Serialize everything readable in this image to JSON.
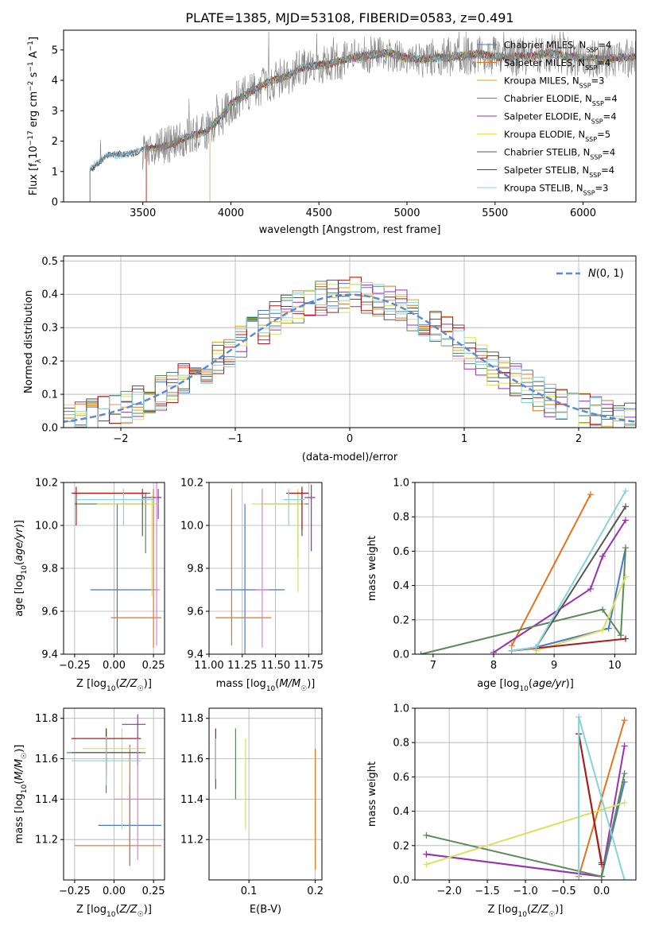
{
  "figure": {
    "title": "PLATE=1385, MJD=53108, FIBERID=0583, z=0.491"
  },
  "colors": {
    "series": [
      "#4a78c8",
      "#e5731c",
      "#d7a71e",
      "#5a8a5a",
      "#9a2fb0",
      "#d6e35a",
      "#555555",
      "#b01818",
      "#86d3dc"
    ],
    "pink": "#e87ad2",
    "gauss": "#5b8ad6"
  },
  "chart_data": [
    {
      "id": "spectrum",
      "type": "line",
      "xlabel": "wavelength [Angstrom, rest frame]",
      "ylabel": "Flux [f_λ 10^-17 erg cm^-2 s^-1 A^-1]",
      "xlim": [
        3050,
        6300
      ],
      "ylim": [
        0,
        5.65
      ],
      "xticks": [
        3500,
        4000,
        4500,
        5000,
        5500,
        6000
      ],
      "yticks": [
        0,
        1,
        2,
        3,
        4,
        5
      ],
      "legend_position": "upper right",
      "series": [
        {
          "name": "Chabrier MILES, N_SSP=4"
        },
        {
          "name": "Salpeter MILES, N_SSP=4"
        },
        {
          "name": "Kroupa MILES, N_SSP=3"
        },
        {
          "name": "Chabrier ELODIE, N_SSP=4"
        },
        {
          "name": "Salpeter ELODIE, N_SSP=4"
        },
        {
          "name": "Kroupa ELODIE, N_SSP=5"
        },
        {
          "name": "Chabrier STELIB, N_SSP=4"
        },
        {
          "name": "Salpeter STELIB, N_SSP=4"
        },
        {
          "name": "Kroupa STELIB, N_SSP=3"
        }
      ],
      "model_start": [
        3200,
        3520,
        3520,
        3880,
        3880,
        3880,
        3200,
        3520,
        3200
      ],
      "continuum": {
        "x": [
          3200,
          3250,
          3300,
          3400,
          3500,
          3550,
          3650,
          3700,
          3750,
          3800,
          3850,
          3950,
          4000,
          4100,
          4200,
          4300,
          4400,
          4500,
          4600,
          4700,
          4800,
          4900,
          5000,
          5100,
          5200,
          5300,
          5400,
          5500,
          5600,
          5700,
          5800,
          5900,
          6000,
          6100,
          6200
        ],
        "y": [
          1.1,
          1.3,
          1.5,
          1.6,
          1.7,
          1.75,
          1.9,
          2.0,
          2.1,
          2.2,
          2.3,
          2.8,
          3.2,
          3.6,
          3.9,
          4.1,
          4.4,
          4.5,
          4.6,
          4.75,
          4.85,
          4.9,
          4.75,
          4.7,
          4.75,
          4.8,
          4.85,
          4.8,
          4.75,
          4.8,
          4.9,
          4.8,
          4.75,
          4.7,
          4.75
        ]
      },
      "observed_start": 3200
    },
    {
      "id": "residuals",
      "type": "histogram",
      "xlabel": "(data-model)/error",
      "ylabel": "Normed distribution",
      "xlim": [
        -2.5,
        2.5
      ],
      "ylim": [
        0,
        0.515
      ],
      "xticks": [
        -2,
        -1,
        0,
        1,
        2
      ],
      "yticks": [
        0.0,
        0.1,
        0.2,
        0.3,
        0.4,
        0.5
      ],
      "bin_width": 0.1,
      "legend_position": "upper right",
      "reference": {
        "name": "N(0,1)",
        "mean": 0,
        "sigma": 1
      }
    },
    {
      "id": "age-vs-Z",
      "type": "scatter",
      "xlabel": "Z [log10(Z/Z☉)]",
      "ylabel": "age [log10(age/yr)]",
      "xlim": [
        -0.32,
        0.32
      ],
      "ylim": [
        9.4,
        10.2
      ],
      "xticks": [
        -0.25,
        0.0,
        0.25
      ],
      "yticks": [
        9.4,
        9.6,
        9.8,
        10.0,
        10.2
      ],
      "points": [
        {
          "s": 0,
          "x": 0.02,
          "y": 9.7,
          "xerr": [
            0.17,
            0.25
          ],
          "yerr": [
            0.3,
            0.4
          ]
        },
        {
          "s": 1,
          "x": 0.25,
          "y": 9.57,
          "xerr": [
            0.27,
            0.05
          ],
          "yerr": [
            0.14,
            0.6
          ]
        },
        {
          "s": 4,
          "x": 0.28,
          "y": 10.13,
          "xerr": [
            0.1,
            0.02
          ],
          "yerr": [
            0.1,
            0.04
          ]
        },
        {
          "s": 3,
          "x": 0.2,
          "y": 10.1,
          "xerr": [
            0.45,
            0.02
          ],
          "yerr": [
            0.23,
            0.05
          ]
        },
        {
          "s": 5,
          "x": 0.24,
          "y": 10.1,
          "xerr": [
            0.35,
            0.04
          ],
          "yerr": [
            0.43,
            0.04
          ]
        },
        {
          "s": 6,
          "x": 0.18,
          "y": 10.15,
          "xerr": [
            0.45,
            0.05
          ],
          "yerr": [
            0.2,
            0.02
          ]
        },
        {
          "s": 7,
          "x": -0.24,
          "y": 10.15,
          "xerr": [
            0.02,
            0.45
          ],
          "yerr": [
            0.15,
            0.03
          ]
        },
        {
          "s": 8,
          "x": 0.06,
          "y": 10.12,
          "xerr": [
            0.3,
            0.2
          ],
          "yerr": [
            0.12,
            0.05
          ]
        }
      ],
      "pink_point": {
        "x": 0.27,
        "y": 9.7,
        "xerr": [
          0.02,
          0.02
        ],
        "yerr": [
          0.26,
          0.5
        ]
      }
    },
    {
      "id": "age-vs-mass",
      "type": "scatter",
      "xlabel": "mass [log10(M/M☉)]",
      "ylabel": "",
      "xlim": [
        11.0,
        11.85
      ],
      "ylim": [
        9.4,
        10.2
      ],
      "xticks": [
        11.0,
        11.25,
        11.5,
        11.75
      ],
      "xtick_labels": [
        "11.00",
        "11.25",
        "11.50",
        "11.75"
      ],
      "yticks": [
        9.4,
        9.6,
        9.8,
        10.0,
        10.2
      ],
      "points": [
        {
          "s": 0,
          "x": 11.27,
          "y": 9.7,
          "xerr": [
            0.22,
            0.3
          ],
          "yerr": [
            0.3,
            0.4
          ]
        },
        {
          "s": 1,
          "x": 11.17,
          "y": 9.57,
          "xerr": [
            0.12,
            0.3
          ],
          "yerr": [
            0.13,
            0.6
          ]
        },
        {
          "s": 4,
          "x": 11.77,
          "y": 10.13,
          "xerr": [
            0.05,
            0.03
          ],
          "yerr": [
            0.25,
            0.06
          ]
        },
        {
          "s": 3,
          "x": 11.67,
          "y": 10.1,
          "xerr": [
            0.26,
            0.08
          ],
          "yerr": [
            0.25,
            0.06
          ]
        },
        {
          "s": 5,
          "x": 11.67,
          "y": 10.1,
          "xerr": [
            0.35,
            0.05
          ],
          "yerr": [
            0.41,
            0.07
          ]
        },
        {
          "s": 6,
          "x": 11.7,
          "y": 10.15,
          "xerr": [
            0.12,
            0.05
          ],
          "yerr": [
            0.2,
            0.02
          ]
        },
        {
          "s": 7,
          "x": 11.7,
          "y": 10.15,
          "xerr": [
            0.1,
            0.05
          ],
          "yerr": [
            0.17,
            0.03
          ]
        },
        {
          "s": 8,
          "x": 11.6,
          "y": 10.12,
          "xerr": [
            0.04,
            0.12
          ],
          "yerr": [
            0.12,
            0.05
          ]
        }
      ],
      "pink_point": {
        "x": 11.4,
        "y": 9.7,
        "xerr": [
          0.05,
          0.05
        ],
        "yerr": [
          0.27,
          0.47
        ]
      }
    },
    {
      "id": "weight-vs-age",
      "type": "line",
      "xlabel": "age [log10(age/yr)]",
      "ylabel": "mass weight",
      "xlim": [
        6.7,
        10.35
      ],
      "ylim": [
        0,
        1
      ],
      "xticks": [
        7,
        8,
        9,
        10
      ],
      "yticks": [
        0.0,
        0.2,
        0.4,
        0.6,
        0.8,
        1.0
      ],
      "series": [
        {
          "s": 0,
          "x": [
            8.3,
            8.7,
            9.9,
            10.18
          ],
          "y": [
            0.02,
            0.04,
            0.15,
            0.62
          ]
        },
        {
          "s": 1,
          "x": [
            8.3,
            9.6
          ],
          "y": [
            0.05,
            0.93
          ]
        },
        {
          "s": 4,
          "x": [
            8.0,
            9.6,
            9.8,
            10.18
          ],
          "y": [
            0.01,
            0.38,
            0.57,
            0.78
          ]
        },
        {
          "s": 3,
          "x": [
            6.8,
            9.8,
            10.1,
            10.18
          ],
          "y": [
            0.0,
            0.26,
            0.11,
            0.62
          ]
        },
        {
          "s": 5,
          "x": [
            8.7,
            9.8,
            10.18
          ],
          "y": [
            0.02,
            0.14,
            0.45
          ]
        },
        {
          "s": 6,
          "x": [
            8.3,
            8.7,
            10.18
          ],
          "y": [
            0.02,
            0.04,
            0.86
          ]
        },
        {
          "s": 7,
          "x": [
            8.3,
            10.18
          ],
          "y": [
            0.02,
            0.09
          ]
        },
        {
          "s": 8,
          "x": [
            8.3,
            8.7,
            10.18
          ],
          "y": [
            0.02,
            0.04,
            0.95
          ]
        }
      ]
    },
    {
      "id": "mass-vs-Z",
      "type": "scatter",
      "xlabel": "Z [log10(Z/Z☉)]",
      "ylabel": "mass [log10(M/M☉)]",
      "xlim": [
        -0.32,
        0.32
      ],
      "ylim": [
        11.0,
        11.85
      ],
      "xticks": [
        -0.25,
        0.0,
        0.25
      ],
      "yticks": [
        11.2,
        11.4,
        11.6,
        11.8
      ],
      "points": [
        {
          "s": 0,
          "x": 0.1,
          "y": 11.27,
          "xerr": [
            0.2,
            0.2
          ],
          "yerr": [
            0.2,
            0.2
          ]
        },
        {
          "s": 1,
          "x": 0.1,
          "y": 11.17,
          "xerr": [
            0.35,
            0.2
          ],
          "yerr": [
            0.1,
            0.5
          ]
        },
        {
          "s": 4,
          "x": 0.15,
          "y": 11.77,
          "xerr": [
            0.1,
            0.05
          ],
          "yerr": [
            0.2,
            0.05
          ]
        },
        {
          "s": 3,
          "x": -0.05,
          "y": 11.63,
          "xerr": [
            0.25,
            0.25
          ],
          "yerr": [
            0.2,
            0.1
          ]
        },
        {
          "s": 5,
          "x": 0.05,
          "y": 11.65,
          "xerr": [
            0.25,
            0.15
          ],
          "yerr": [
            0.4,
            0.1
          ]
        },
        {
          "s": 6,
          "x": -0.05,
          "y": 11.63,
          "xerr": [
            0.22,
            0.22
          ],
          "yerr": [
            0.12,
            0.12
          ]
        },
        {
          "s": 7,
          "x": -0.05,
          "y": 11.7,
          "xerr": [
            0.22,
            0.22
          ],
          "yerr": [
            0.15,
            0.05
          ]
        },
        {
          "s": 8,
          "x": -0.05,
          "y": 11.59,
          "xerr": [
            0.22,
            0.22
          ],
          "yerr": [
            0.12,
            0.12
          ]
        }
      ],
      "pink_point": {
        "x": 0.15,
        "y": 11.4,
        "xerr": [
          0.15,
          0.15
        ],
        "yerr": [
          0.3,
          0.3
        ]
      }
    },
    {
      "id": "mass-vs-ebv",
      "type": "scatter",
      "xlabel": "E(B-V)",
      "ylabel": "",
      "xlim": [
        0.04,
        0.21
      ],
      "ylim": [
        11.0,
        11.85
      ],
      "xticks": [
        0.1,
        0.2
      ],
      "yticks": [
        11.2,
        11.4,
        11.6,
        11.8
      ],
      "points": [
        {
          "s": 0,
          "x": 0.05,
          "y": 11.6,
          "xerr": [
            0,
            0
          ],
          "yerr": [
            0.1,
            0.1
          ]
        },
        {
          "s": 1,
          "x": 0.2,
          "y": 11.4,
          "xerr": [
            0,
            0
          ],
          "yerr": [
            0.35,
            0.25
          ]
        },
        {
          "s": 3,
          "x": 0.08,
          "y": 11.5,
          "xerr": [
            0,
            0
          ],
          "yerr": [
            0.1,
            0.25
          ]
        },
        {
          "s": 5,
          "x": 0.095,
          "y": 11.5,
          "xerr": [
            0,
            0
          ],
          "yerr": [
            0.25,
            0.2
          ]
        },
        {
          "s": 6,
          "x": 0.05,
          "y": 11.6,
          "xerr": [
            0,
            0
          ],
          "yerr": [
            0.15,
            0.1
          ]
        },
        {
          "s": 7,
          "x": 0.05,
          "y": 11.65,
          "xerr": [
            0,
            0
          ],
          "yerr": [
            0.15,
            0.1
          ]
        },
        {
          "s": 8,
          "x": 0.05,
          "y": 11.6,
          "xerr": [
            0,
            0
          ],
          "yerr": [
            0.1,
            0.1
          ]
        }
      ]
    },
    {
      "id": "weight-vs-Z",
      "type": "line",
      "xlabel": "Z [log10(Z/Z☉)]",
      "ylabel": "mass weight",
      "xlim": [
        -2.45,
        0.45
      ],
      "ylim": [
        0,
        1
      ],
      "xticks": [
        -2.0,
        -1.5,
        -1.0,
        -0.5,
        0.0
      ],
      "yticks": [
        0.0,
        0.2,
        0.4,
        0.6,
        0.8,
        1.0
      ],
      "series": [
        {
          "s": 0,
          "x": [
            -2.3,
            0.0,
            0.3
          ],
          "y": [
            0.15,
            0.02,
            0.57
          ]
        },
        {
          "s": 1,
          "x": [
            -0.3,
            0.3
          ],
          "y": [
            0.02,
            0.93
          ]
        },
        {
          "s": 4,
          "x": [
            -2.3,
            0.0,
            0.3
          ],
          "y": [
            0.15,
            0.02,
            0.78
          ]
        },
        {
          "s": 3,
          "x": [
            -2.3,
            0.0,
            0.3
          ],
          "y": [
            0.26,
            0.02,
            0.62
          ]
        },
        {
          "s": 5,
          "x": [
            -2.3,
            0.3
          ],
          "y": [
            0.09,
            0.45
          ]
        },
        {
          "s": 6,
          "x": [
            -0.3,
            0.0
          ],
          "y": [
            0.85,
            0.1
          ]
        },
        {
          "s": 7,
          "x": [
            -0.3,
            0.0
          ],
          "y": [
            0.85,
            0.09
          ]
        },
        {
          "s": 8,
          "x": [
            -0.3,
            -0.3,
            0.3
          ],
          "y": [
            0.0,
            0.95,
            0.0
          ]
        }
      ]
    }
  ]
}
